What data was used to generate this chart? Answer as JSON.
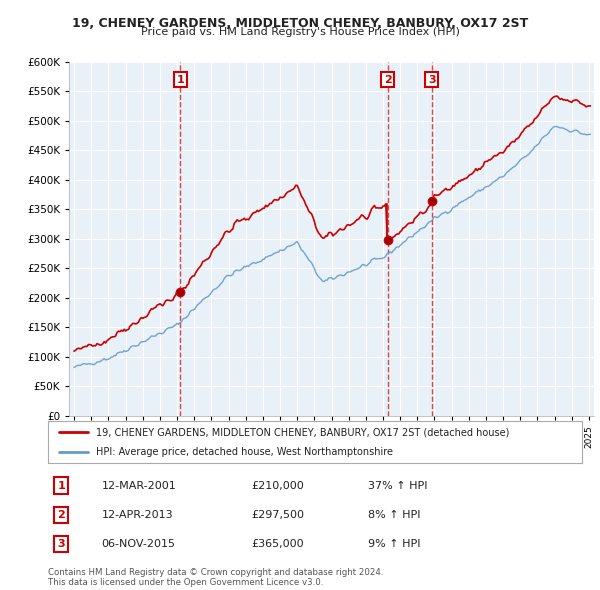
{
  "title1": "19, CHENEY GARDENS, MIDDLETON CHENEY, BANBURY, OX17 2ST",
  "title2": "Price paid vs. HM Land Registry's House Price Index (HPI)",
  "ylim": [
    0,
    600000
  ],
  "yticks": [
    0,
    50000,
    100000,
    150000,
    200000,
    250000,
    300000,
    350000,
    400000,
    450000,
    500000,
    550000,
    600000
  ],
  "sale_dates": [
    2001.19,
    2013.28,
    2015.84
  ],
  "sale_prices": [
    210000,
    297500,
    365000
  ],
  "sale_labels": [
    "1",
    "2",
    "3"
  ],
  "legend_red": "19, CHENEY GARDENS, MIDDLETON CHENEY, BANBURY, OX17 2ST (detached house)",
  "legend_blue": "HPI: Average price, detached house, West Northamptonshire",
  "table_rows": [
    [
      "1",
      "12-MAR-2001",
      "£210,000",
      "37% ↑ HPI"
    ],
    [
      "2",
      "12-APR-2013",
      "£297,500",
      "8% ↑ HPI"
    ],
    [
      "3",
      "06-NOV-2015",
      "£365,000",
      "9% ↑ HPI"
    ]
  ],
  "footnote": "Contains HM Land Registry data © Crown copyright and database right 2024.\nThis data is licensed under the Open Government Licence v3.0.",
  "red_color": "#cc0000",
  "blue_color": "#6699cc",
  "chart_bg": "#e8f0f8",
  "vline_color": "#cc0000",
  "background_color": "#ffffff",
  "grid_color": "#ffffff"
}
